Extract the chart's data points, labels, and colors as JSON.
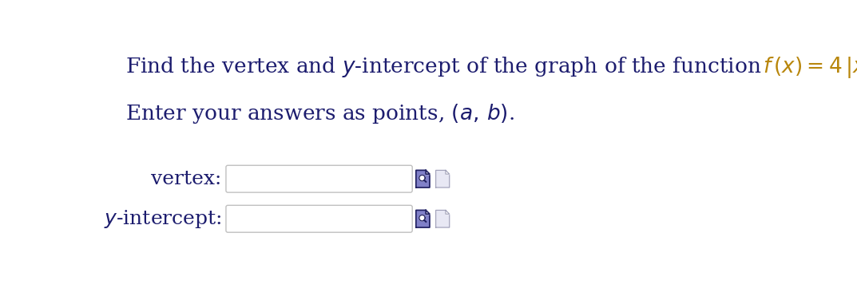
{
  "background_color": "#ffffff",
  "formula_color": "#b8860b",
  "text_color": "#1c1c6e",
  "font_size_title": 19,
  "font_size_subtitle": 19,
  "font_size_labels": 18,
  "box_facecolor": "#ffffff",
  "box_edgecolor": "#c0c0c0",
  "icon1_facecolor": "#8080c8",
  "icon1_edgecolor": "#202060",
  "icon2_facecolor": "#e8e8f4",
  "icon2_edgecolor": "#a0a0b8",
  "label_vertex": "vertex:",
  "label_yintercept": "y-intercept:"
}
